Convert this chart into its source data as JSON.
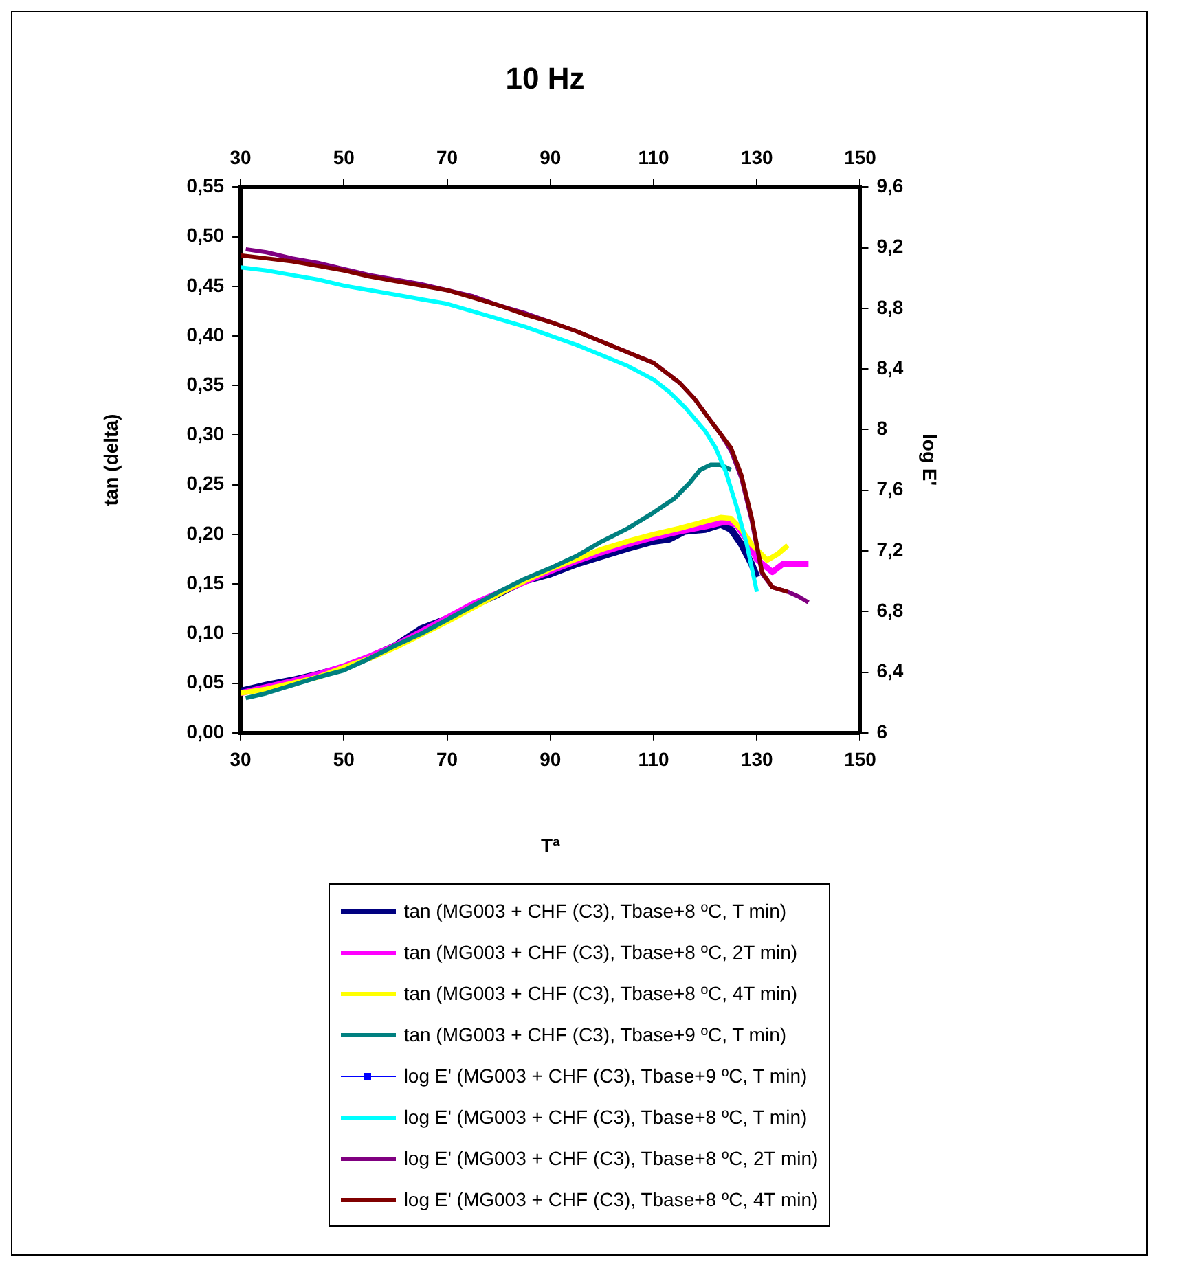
{
  "chart_data": {
    "type": "line",
    "title": "10 Hz",
    "xlabel": "Tª",
    "ylabel": "tan (delta)",
    "y2label": "log E'",
    "xlim": [
      30,
      150
    ],
    "xticks": [
      30,
      50,
      70,
      90,
      110,
      130,
      150
    ],
    "x2lim": [
      30,
      150
    ],
    "x2ticks": [
      30,
      50,
      70,
      90,
      110,
      130,
      150
    ],
    "ylim": [
      0,
      0.55
    ],
    "yticks": [
      {
        "value": 0,
        "label": "0,00"
      },
      {
        "value": 0.05,
        "label": "0,05"
      },
      {
        "value": 0.1,
        "label": "0,10"
      },
      {
        "value": 0.15,
        "label": "0,15"
      },
      {
        "value": 0.2,
        "label": "0,20"
      },
      {
        "value": 0.25,
        "label": "0,25"
      },
      {
        "value": 0.3,
        "label": "0,30"
      },
      {
        "value": 0.35,
        "label": "0,35"
      },
      {
        "value": 0.4,
        "label": "0,40"
      },
      {
        "value": 0.45,
        "label": "0,45"
      },
      {
        "value": 0.5,
        "label": "0,50"
      },
      {
        "value": 0.55,
        "label": "0,55"
      }
    ],
    "y2lim": [
      6,
      9.6
    ],
    "y2ticks": [
      6,
      {
        "value": 6.4,
        "label": "6,4"
      },
      {
        "value": 6.8,
        "label": "6,8"
      },
      {
        "value": 7.2,
        "label": "7,2"
      },
      {
        "value": 7.6,
        "label": "7,6"
      },
      8,
      {
        "value": 8.4,
        "label": "8,4"
      },
      {
        "value": 8.8,
        "label": "8,8"
      },
      {
        "value": 9.2,
        "label": "9,2"
      },
      {
        "value": 9.6,
        "label": "9,6"
      }
    ],
    "grid": false,
    "legend": "bottom",
    "marker": "none",
    "line_style": "solid",
    "series": [
      {
        "name": "tan (MG003 + CHF (C3), Tbase+8 ºC, T min)",
        "color": "#000080",
        "x": [
          30,
          35,
          40,
          45,
          50,
          55,
          60,
          65,
          70,
          75,
          80,
          85,
          90,
          95,
          100,
          105,
          110,
          113,
          116,
          120,
          123,
          125,
          127,
          129,
          130
        ],
        "values": [
          0.042,
          0.048,
          0.053,
          0.059,
          0.066,
          0.076,
          0.088,
          0.105,
          0.115,
          0.128,
          0.14,
          0.153,
          0.16,
          0.17,
          0.178,
          0.186,
          0.193,
          0.195,
          0.203,
          0.205,
          0.21,
          0.205,
          0.19,
          0.17,
          0.157
        ]
      },
      {
        "name": "tan (MG003 + CHF (C3), Tbase+8 ºC, 2T min)",
        "color": "#ff00ff",
        "x": [
          30,
          35,
          40,
          45,
          50,
          55,
          60,
          65,
          70,
          75,
          80,
          85,
          90,
          95,
          100,
          105,
          110,
          115,
          120,
          124,
          126,
          128,
          130,
          133,
          135,
          137,
          140
        ],
        "values": [
          0.04,
          0.046,
          0.052,
          0.059,
          0.067,
          0.077,
          0.088,
          0.102,
          0.116,
          0.13,
          0.141,
          0.152,
          0.163,
          0.173,
          0.182,
          0.19,
          0.197,
          0.203,
          0.208,
          0.213,
          0.21,
          0.195,
          0.175,
          0.162,
          0.17,
          0.17,
          0.17
        ]
      },
      {
        "name": "tan (MG003 + CHF (C3), Tbase+8 ºC, 4T min)",
        "color": "#ffff00",
        "x": [
          30,
          35,
          40,
          45,
          50,
          55,
          60,
          65,
          70,
          75,
          80,
          85,
          90,
          95,
          100,
          105,
          110,
          115,
          120,
          123,
          125,
          127,
          129,
          132,
          134,
          136
        ],
        "values": [
          0.04,
          0.044,
          0.05,
          0.056,
          0.066,
          0.075,
          0.086,
          0.099,
          0.112,
          0.126,
          0.14,
          0.153,
          0.165,
          0.175,
          0.185,
          0.193,
          0.2,
          0.206,
          0.213,
          0.217,
          0.216,
          0.205,
          0.19,
          0.174,
          0.18,
          0.189
        ]
      },
      {
        "name": "tan (MG003 + CHF (C3), Tbase+9 ºC, T min)",
        "color": "#008080",
        "x": [
          31,
          35,
          40,
          45,
          50,
          55,
          60,
          65,
          70,
          75,
          80,
          85,
          90,
          95,
          100,
          105,
          110,
          114,
          117,
          119,
          121,
          123,
          125
        ],
        "values": [
          0.035,
          0.04,
          0.048,
          0.056,
          0.063,
          0.075,
          0.088,
          0.1,
          0.114,
          0.128,
          0.142,
          0.155,
          0.166,
          0.178,
          0.193,
          0.206,
          0.222,
          0.236,
          0.252,
          0.265,
          0.27,
          0.27,
          0.265
        ]
      },
      {
        "name": "log E' (MG003 + CHF (C3), Tbase+9 ºC, T min)",
        "color": "#0000ff",
        "axis": "y2",
        "marker": "square"
      },
      {
        "name": "log E' (MG003 + CHF (C3), Tbase+8 ºC, T min)",
        "color": "#00ffff",
        "axis": "y2",
        "x": [
          30,
          35,
          40,
          45,
          50,
          55,
          60,
          65,
          70,
          75,
          80,
          85,
          90,
          95,
          100,
          105,
          110,
          113,
          116,
          118,
          120,
          122,
          124,
          126,
          128,
          130
        ],
        "values": [
          9.07,
          9.05,
          9.02,
          8.99,
          8.95,
          8.92,
          8.89,
          8.86,
          8.83,
          8.78,
          8.73,
          8.68,
          8.62,
          8.56,
          8.49,
          8.42,
          8.33,
          8.25,
          8.15,
          8.07,
          7.99,
          7.88,
          7.72,
          7.5,
          7.25,
          6.93
        ]
      },
      {
        "name": "log E' (MG003 + CHF (C3), Tbase+8 ºC, 2T min)",
        "color": "#800080",
        "axis": "y2",
        "x": [
          31,
          35,
          40,
          45,
          50,
          55,
          60,
          65,
          70,
          75,
          80,
          85,
          90,
          95,
          100,
          105,
          110,
          115,
          118,
          121,
          123,
          125,
          127,
          129,
          131,
          133,
          136,
          138,
          140
        ],
        "values": [
          9.19,
          9.17,
          9.13,
          9.1,
          9.06,
          9.02,
          8.99,
          8.96,
          8.92,
          8.88,
          8.82,
          8.77,
          8.71,
          8.65,
          8.58,
          8.51,
          8.44,
          8.31,
          8.2,
          8.06,
          7.97,
          7.86,
          7.68,
          7.4,
          7.05,
          6.96,
          6.93,
          6.9,
          6.86
        ]
      },
      {
        "name": "log E' (MG003 + CHF (C3), Tbase+8 ºC, 4T min)",
        "color": "#800000",
        "axis": "y2",
        "x": [
          30,
          35,
          40,
          45,
          50,
          55,
          60,
          65,
          70,
          75,
          80,
          85,
          90,
          95,
          100,
          105,
          110,
          115,
          118,
          121,
          123,
          125,
          127,
          129,
          131,
          133,
          136
        ],
        "values": [
          9.15,
          9.13,
          9.11,
          9.08,
          9.05,
          9.01,
          8.98,
          8.95,
          8.92,
          8.87,
          8.82,
          8.76,
          8.71,
          8.65,
          8.58,
          8.51,
          8.44,
          8.31,
          8.2,
          8.06,
          7.97,
          7.88,
          7.7,
          7.42,
          7.06,
          6.96,
          6.93
        ]
      }
    ]
  }
}
